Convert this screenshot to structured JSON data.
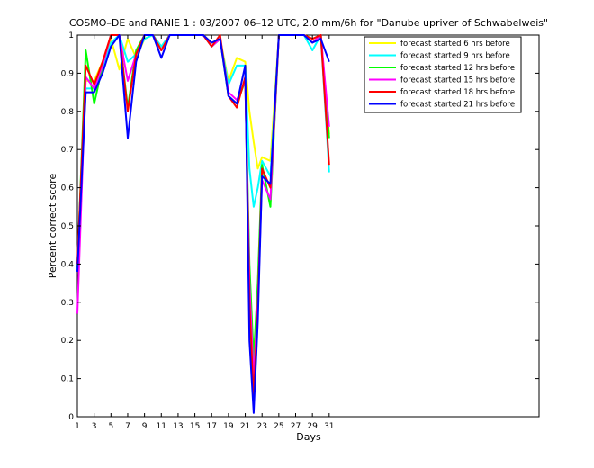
{
  "chart_data": {
    "type": "line",
    "title": "COSMO–DE and RANIE 1 : 03/2007 06–12 UTC, 2.0 mm/6h for \"Danube upriver of Schwabelweis\"",
    "xlabel": "Days",
    "ylabel": "Percent correct score",
    "xlim": [
      1,
      56
    ],
    "ylim": [
      0,
      1
    ],
    "x_ticks": [
      1,
      3,
      5,
      7,
      9,
      11,
      13,
      15,
      17,
      19,
      21,
      23,
      25,
      27,
      29,
      31
    ],
    "y_ticks": [
      0,
      0.1,
      0.2,
      0.3,
      0.4,
      0.5,
      0.6,
      0.7,
      0.8,
      0.9,
      1
    ],
    "y_tick_labels": [
      "0",
      "0.1",
      "0.2",
      "0.3",
      "0.4",
      "0.5",
      "0.6",
      "0.7",
      "0.8",
      "0.9",
      "1"
    ],
    "grid": false,
    "legend_position": "top-right",
    "x": [
      1,
      2,
      3,
      4,
      5,
      6,
      7,
      8,
      9,
      10,
      11,
      12,
      13,
      14,
      15,
      16,
      17,
      18,
      19,
      20,
      21,
      21.5,
      22,
      22.5,
      23,
      24,
      25,
      26,
      27,
      28,
      29,
      30,
      31
    ],
    "series": [
      {
        "name": "forecast started 6 hrs before",
        "color": "#ffff00",
        "values": [
          0.4,
          0.88,
          0.88,
          0.93,
          0.99,
          0.91,
          0.99,
          0.94,
          0.99,
          1.0,
          0.97,
          1.0,
          1.0,
          1.0,
          1.0,
          1.0,
          0.98,
          0.99,
          0.88,
          0.94,
          0.93,
          0.8,
          0.72,
          0.65,
          0.68,
          0.67,
          1.0,
          1.0,
          1.0,
          1.0,
          0.99,
          1.0,
          0.74
        ]
      },
      {
        "name": "forecast started 9 hrs before",
        "color": "#00ffff",
        "values": [
          0.38,
          0.86,
          0.86,
          0.91,
          0.98,
          1.0,
          0.93,
          0.95,
          0.99,
          1.0,
          0.97,
          1.0,
          1.0,
          1.0,
          1.0,
          1.0,
          0.97,
          0.99,
          0.87,
          0.92,
          0.92,
          0.65,
          0.55,
          0.6,
          0.67,
          0.63,
          1.0,
          1.0,
          1.0,
          1.0,
          0.96,
          1.0,
          0.64
        ]
      },
      {
        "name": "forecast started 12 hrs before",
        "color": "#00ff00",
        "values": [
          0.39,
          0.96,
          0.82,
          0.92,
          1.0,
          1.0,
          0.81,
          0.96,
          1.0,
          1.0,
          0.96,
          1.0,
          1.0,
          1.0,
          1.0,
          1.0,
          0.97,
          0.99,
          0.84,
          0.82,
          0.88,
          0.4,
          0.15,
          0.35,
          0.66,
          0.55,
          1.0,
          1.0,
          1.0,
          1.0,
          0.98,
          1.0,
          0.73
        ]
      },
      {
        "name": "forecast started 15 hrs before",
        "color": "#ff00ff",
        "values": [
          0.27,
          0.89,
          0.86,
          0.92,
          1.0,
          1.0,
          0.88,
          0.95,
          1.0,
          1.0,
          0.96,
          1.0,
          1.0,
          1.0,
          1.0,
          1.0,
          0.97,
          0.99,
          0.85,
          0.83,
          0.88,
          0.35,
          0.1,
          0.3,
          0.62,
          0.57,
          1.0,
          1.0,
          1.0,
          1.0,
          0.98,
          1.0,
          0.76
        ]
      },
      {
        "name": "forecast started 18 hrs before",
        "color": "#ff0000",
        "values": [
          0.4,
          0.92,
          0.87,
          0.93,
          1.0,
          1.0,
          0.8,
          0.95,
          1.0,
          1.0,
          0.96,
          1.0,
          1.0,
          1.0,
          1.0,
          1.0,
          0.97,
          1.0,
          0.84,
          0.81,
          0.89,
          0.3,
          0.05,
          0.28,
          0.65,
          0.6,
          1.0,
          1.0,
          1.0,
          1.0,
          0.99,
          1.0,
          0.66
        ]
      },
      {
        "name": "forecast started 21 hrs before",
        "color": "#0000ff",
        "values": [
          0.38,
          0.85,
          0.85,
          0.9,
          0.97,
          1.0,
          0.73,
          0.93,
          1.0,
          1.0,
          0.94,
          1.0,
          1.0,
          1.0,
          1.0,
          1.0,
          0.98,
          0.99,
          0.84,
          0.82,
          0.92,
          0.2,
          0.01,
          0.25,
          0.63,
          0.61,
          1.0,
          1.0,
          1.0,
          1.0,
          0.98,
          0.99,
          0.93
        ]
      }
    ]
  }
}
